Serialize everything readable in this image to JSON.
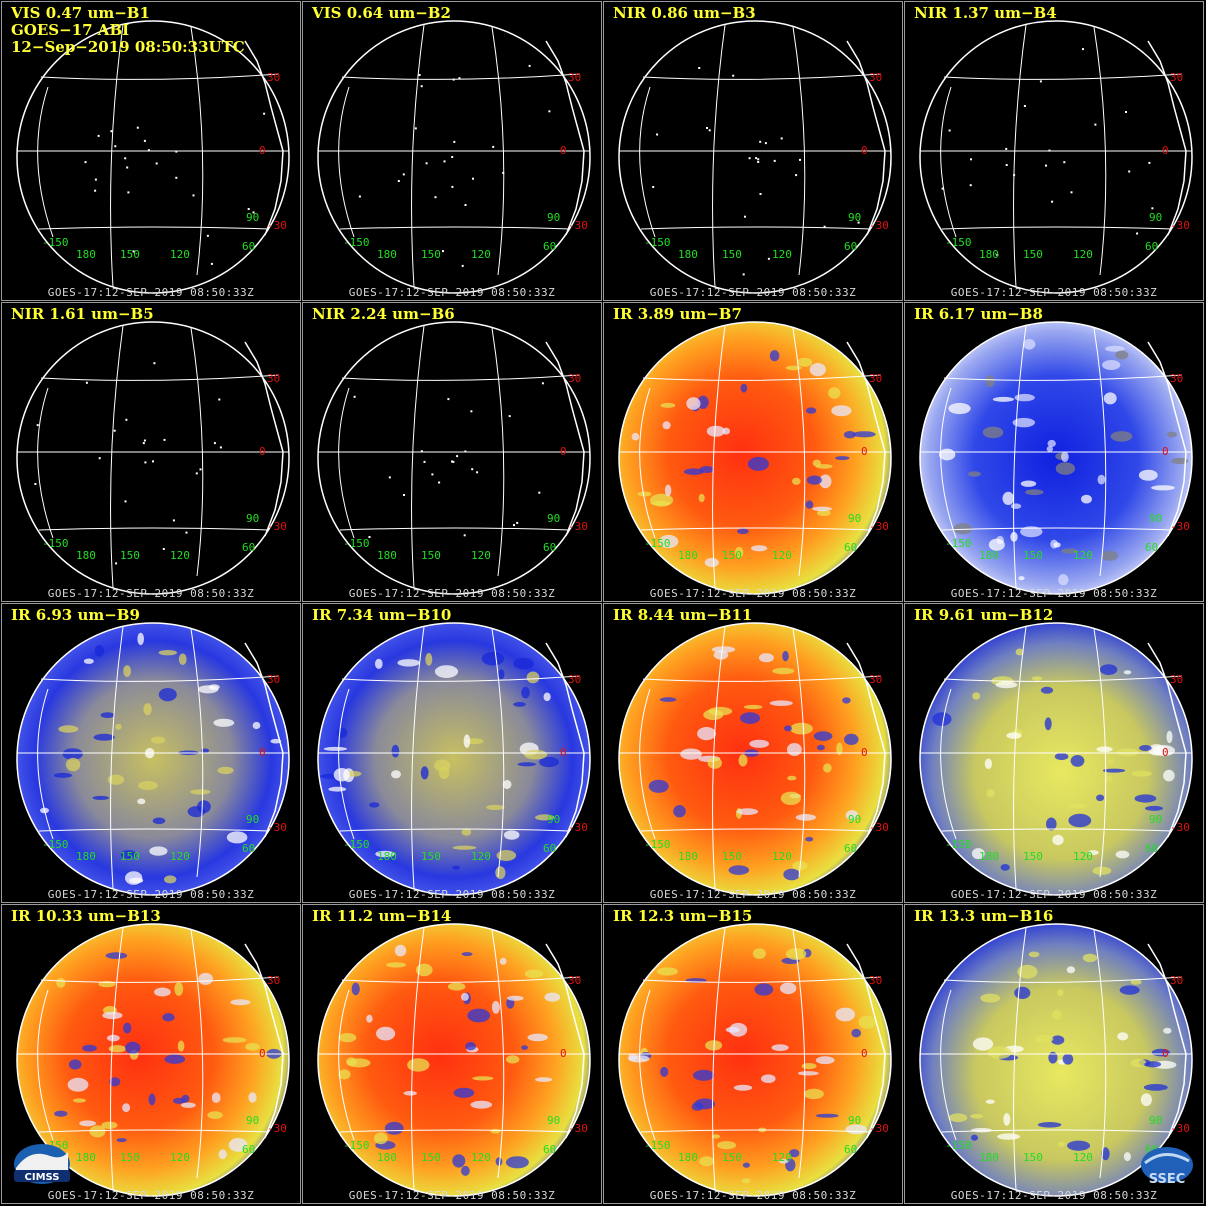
{
  "header": {
    "line1": "GOES−17 ABI",
    "line2": "12−Sep−2019 08:50:33UTC"
  },
  "footer_text": "GOES-17:12-SEP-2019 08:50:33Z",
  "lat_labels": [
    "30",
    "0",
    "-30"
  ],
  "lon_labels": [
    "-150",
    "180",
    "150",
    "120",
    "60",
    "90"
  ],
  "logos": {
    "left": "CIMSS",
    "right": "SSEC"
  },
  "colors": {
    "title": "#ffff33",
    "lat_label": "#e01010",
    "lon_label": "#22dd22",
    "grid": "#ffffff"
  },
  "panels": [
    {
      "title": "VIS 0.47 um−B1",
      "style": "vis"
    },
    {
      "title": "VIS 0.64 um−B2",
      "style": "vis"
    },
    {
      "title": "NIR 0.86 um−B3",
      "style": "vis"
    },
    {
      "title": "NIR 1.37 um−B4",
      "style": "vis"
    },
    {
      "title": "NIR 1.61 um−B5",
      "style": "vis"
    },
    {
      "title": "NIR 2.24 um−B6",
      "style": "vis"
    },
    {
      "title": "IR 3.89 um−B7",
      "style": "warm"
    },
    {
      "title": "IR 6.17 um−B8",
      "style": "wv-blue"
    },
    {
      "title": "IR 6.93 um−B9",
      "style": "wv-mixed"
    },
    {
      "title": "IR 7.34 um−B10",
      "style": "wv-mixed"
    },
    {
      "title": "IR 8.44 um−B11",
      "style": "warm"
    },
    {
      "title": "IR 9.61 um−B12",
      "style": "wv-yellow"
    },
    {
      "title": "IR 10.33 um−B13",
      "style": "warm"
    },
    {
      "title": "IR 11.2 um−B14",
      "style": "warm"
    },
    {
      "title": "IR 12.3 um−B15",
      "style": "warm"
    },
    {
      "title": "IR 13.3 um−B16",
      "style": "wv-yellow"
    }
  ]
}
